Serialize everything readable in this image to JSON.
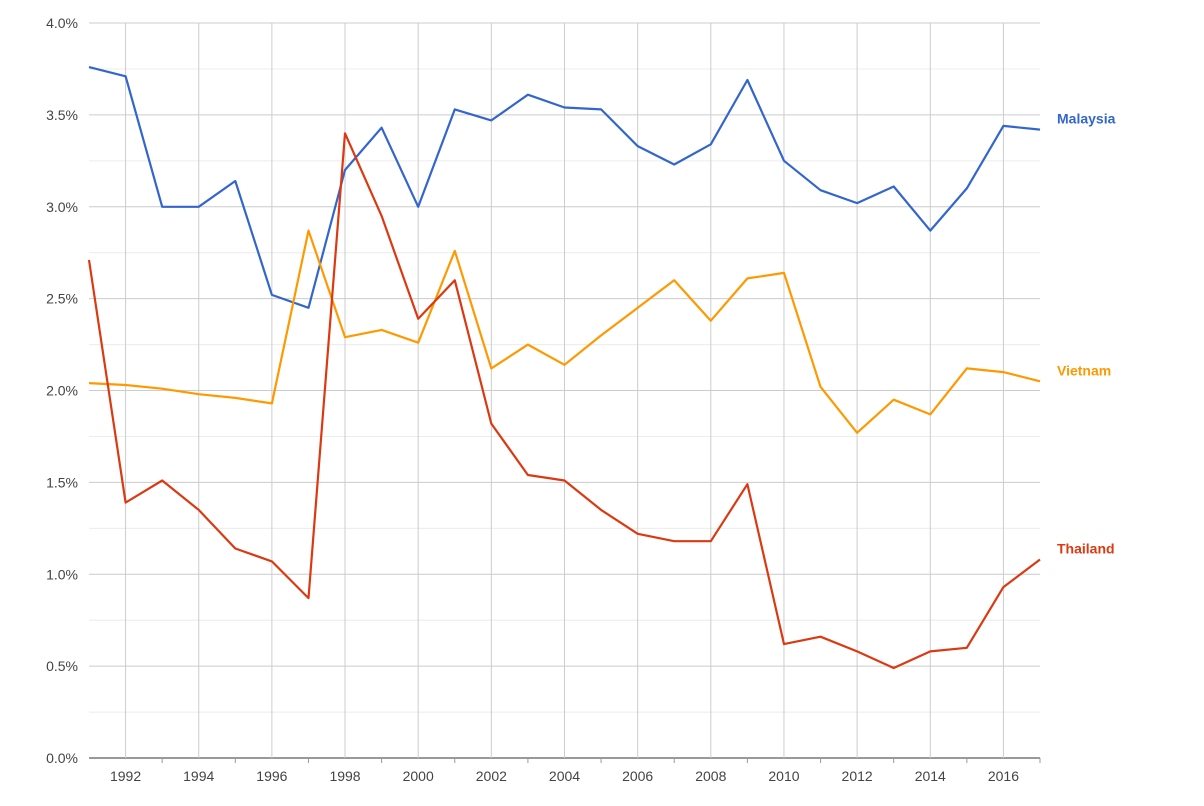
{
  "chart_data": {
    "type": "line",
    "title": "",
    "xlabel": "",
    "ylabel": "",
    "x": [
      1991,
      1992,
      1993,
      1994,
      1995,
      1996,
      1997,
      1998,
      1999,
      2000,
      2001,
      2002,
      2003,
      2004,
      2005,
      2006,
      2007,
      2008,
      2009,
      2010,
      2011,
      2012,
      2013,
      2014,
      2015,
      2016,
      2017
    ],
    "xlim": [
      1991,
      2017
    ],
    "ylim": [
      0,
      4.0
    ],
    "grid": true,
    "legend": "right, end-of-line labels",
    "y_ticks": [
      "0.0%",
      "0.5%",
      "1.0%",
      "1.5%",
      "2.0%",
      "2.5%",
      "3.0%",
      "3.5%",
      "4.0%"
    ],
    "x_ticks": [
      "1992",
      "1994",
      "1996",
      "1998",
      "2000",
      "2002",
      "2004",
      "2006",
      "2008",
      "2010",
      "2012",
      "2014",
      "2016"
    ],
    "series": [
      {
        "name": "Malaysia",
        "color": "#3366cc",
        "values": [
          3.76,
          3.71,
          3.0,
          3.0,
          3.14,
          2.52,
          2.45,
          3.2,
          3.43,
          3.0,
          3.53,
          3.47,
          3.61,
          3.54,
          3.53,
          3.33,
          3.23,
          3.34,
          3.69,
          3.25,
          3.09,
          3.02,
          3.11,
          2.87,
          3.1,
          3.44,
          3.42
        ]
      },
      {
        "name": "Vietnam",
        "color": "#ff9900",
        "values": [
          2.04,
          2.03,
          2.01,
          1.98,
          1.96,
          1.93,
          2.87,
          2.29,
          2.33,
          2.26,
          2.76,
          2.12,
          2.25,
          2.14,
          2.3,
          2.45,
          2.6,
          2.38,
          2.61,
          2.64,
          2.02,
          1.77,
          1.95,
          1.87,
          2.12,
          2.1,
          2.05
        ]
      },
      {
        "name": "Thailand",
        "color": "#dc3912",
        "values": [
          2.71,
          1.39,
          1.51,
          1.35,
          1.14,
          1.07,
          0.87,
          3.4,
          2.95,
          2.39,
          2.6,
          1.82,
          1.54,
          1.51,
          1.35,
          1.22,
          1.18,
          1.18,
          1.49,
          0.62,
          0.66,
          0.58,
          0.49,
          0.58,
          0.6,
          0.93,
          1.08
        ]
      }
    ]
  }
}
